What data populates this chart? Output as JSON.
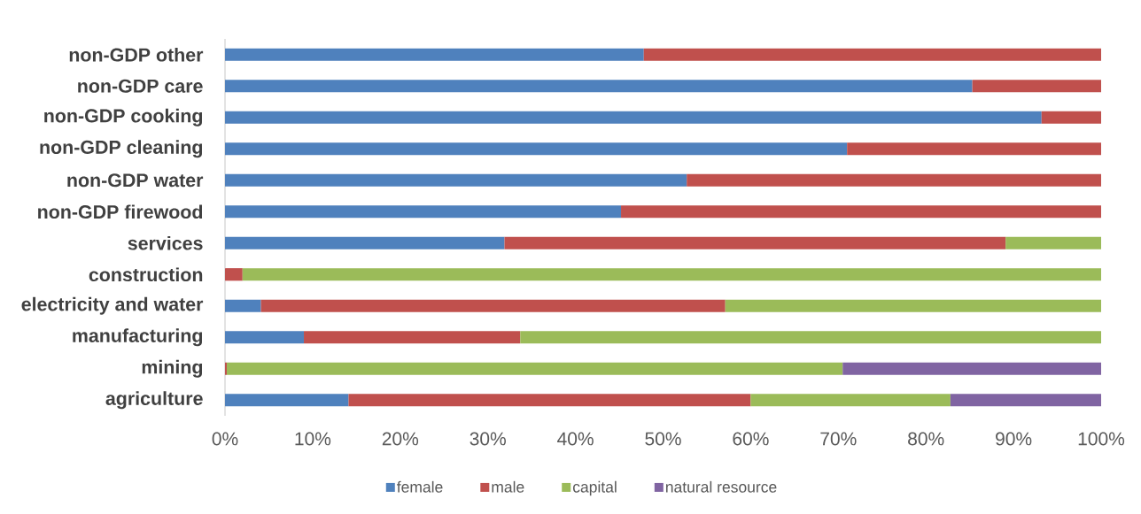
{
  "chart_data": {
    "type": "bar",
    "orientation": "horizontal",
    "stacked": true,
    "categories": [
      "non-GDP other",
      "non-GDP care",
      "non-GDP cooking",
      "non-GDP cleaning",
      "non-GDP water",
      "non-GDP firewood",
      "services",
      "construction",
      "electricity and water",
      "manufacturing",
      "mining",
      "agriculture"
    ],
    "series": [
      {
        "name": "female",
        "color": "#4f81bd",
        "values": [
          47.8,
          85.3,
          93.2,
          71.0,
          52.7,
          45.2,
          31.9,
          null,
          4.1,
          9.0,
          null,
          14.1
        ]
      },
      {
        "name": "male",
        "color": "#c0504d",
        "values": [
          52.2,
          14.7,
          6.8,
          29.0,
          47.3,
          54.8,
          57.2,
          2.0,
          53.0,
          24.7,
          0.2,
          45.9
        ]
      },
      {
        "name": "capital",
        "color": "#9bbb59",
        "values": [
          null,
          null,
          null,
          null,
          null,
          null,
          10.9,
          98.0,
          42.9,
          66.3,
          70.3,
          22.8
        ]
      },
      {
        "name": "natural resource",
        "color": "#8064a2",
        "values": [
          null,
          null,
          null,
          null,
          null,
          null,
          null,
          null,
          null,
          null,
          29.5,
          17.2
        ]
      }
    ],
    "xlim": [
      0,
      100
    ],
    "xticks": [
      {
        "value": 0,
        "label": "0%"
      },
      {
        "value": 10,
        "label": "10%"
      },
      {
        "value": 20,
        "label": "20%"
      },
      {
        "value": 30,
        "label": "30%"
      },
      {
        "value": 40,
        "label": "40%"
      },
      {
        "value": 50,
        "label": "50%"
      },
      {
        "value": 60,
        "label": "60%"
      },
      {
        "value": 70,
        "label": "70%"
      },
      {
        "value": 80,
        "label": "80%"
      },
      {
        "value": 90,
        "label": "90%"
      },
      {
        "value": 100,
        "label": "100%"
      }
    ],
    "legend": "bottom"
  }
}
